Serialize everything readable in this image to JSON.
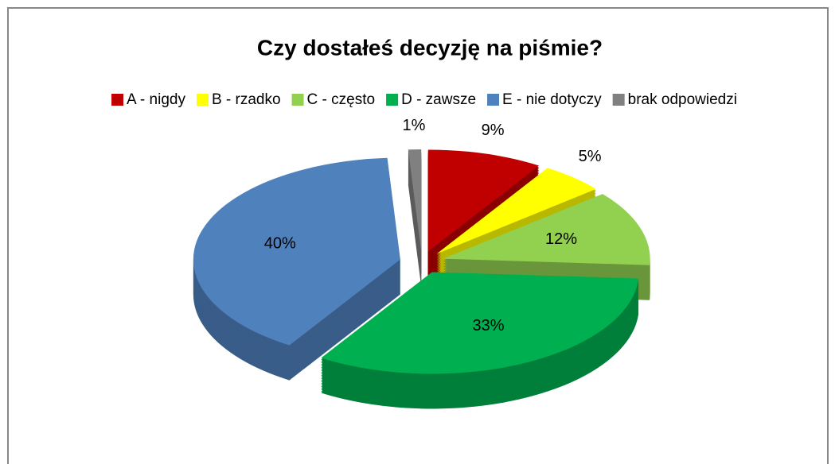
{
  "chart_data": {
    "type": "pie",
    "title": "Czy dostałeś decyzję na piśmie?",
    "categories": [
      "A - nigdy",
      "B - rzadko",
      "C - często",
      "D - zawsze",
      "E - nie dotyczy",
      "brak odpowiedzi"
    ],
    "values": [
      9,
      5,
      12,
      33,
      40,
      1
    ],
    "value_labels": [
      "9%",
      "5%",
      "12%",
      "33%",
      "40%",
      "1%"
    ],
    "colors": [
      "#c00000",
      "#ffff00",
      "#92d050",
      "#00b050",
      "#4f81bd",
      "#808080"
    ],
    "legend": "top"
  }
}
